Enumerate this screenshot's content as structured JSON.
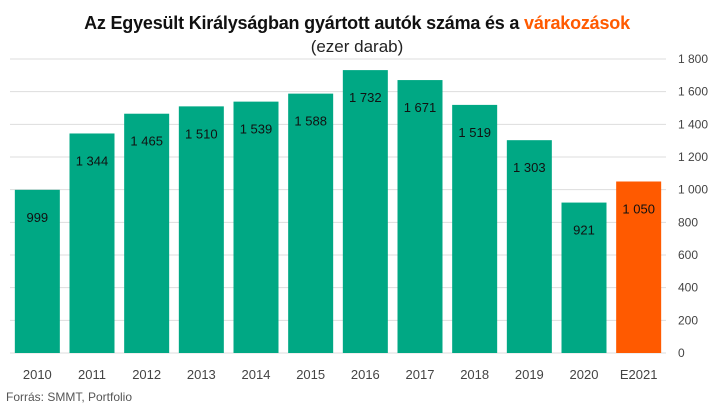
{
  "chart_data": {
    "type": "bar",
    "title_main": "Az Egyesült Királyságban gyártott autók száma és a ",
    "title_highlight": "várakozások",
    "subtitle": "(ezer darab)",
    "categories": [
      "2010",
      "2011",
      "2012",
      "2013",
      "2014",
      "2015",
      "2016",
      "2017",
      "2018",
      "2019",
      "2020",
      "E2021"
    ],
    "values": [
      999,
      1344,
      1465,
      1510,
      1539,
      1588,
      1732,
      1671,
      1519,
      1303,
      921,
      1050
    ],
    "value_labels": [
      "999",
      "1 344",
      "1 465",
      "1 510",
      "1 539",
      "1 588",
      "1 732",
      "1 671",
      "1 519",
      "1 303",
      "921",
      "1 050"
    ],
    "estimated_index": 11,
    "ylim": [
      0,
      1800
    ],
    "yticks": [
      0,
      200,
      400,
      600,
      800,
      1000,
      1200,
      1400,
      1600,
      1800
    ],
    "ytick_labels": [
      "0",
      "200",
      "400",
      "600",
      "800",
      "1 000",
      "1 200",
      "1 400",
      "1 600",
      "1 800"
    ],
    "y_axis_position": "right",
    "grid": true,
    "colors": {
      "actual": "#00a884",
      "estimate": "#ff5a00",
      "grid": "#dddddd",
      "title_highlight": "#ff5a00"
    }
  },
  "source": "Forrás: SMMT, Portfolio"
}
